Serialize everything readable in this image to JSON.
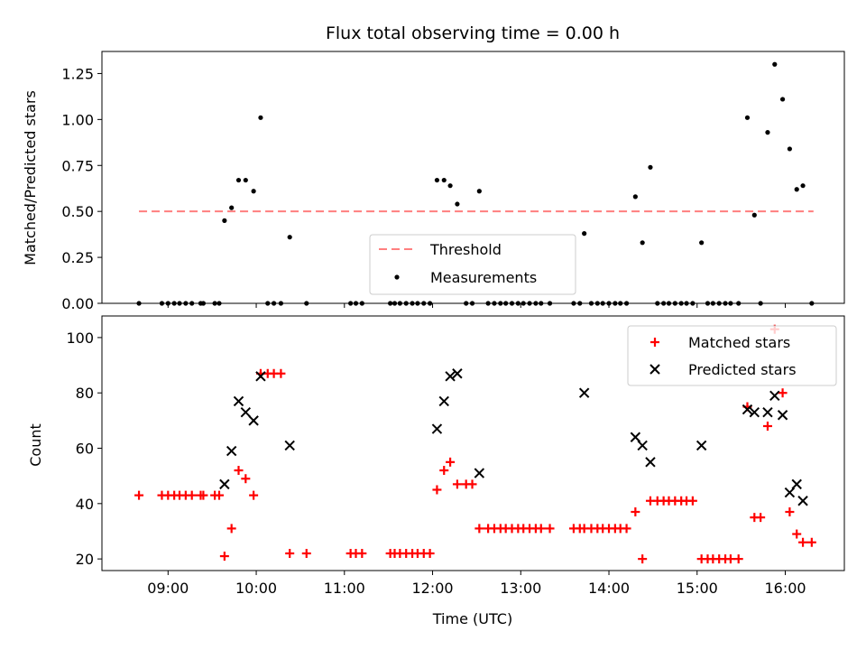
{
  "chart_data": {
    "title": "Flux total observing time = 0.00 h",
    "xlabel": "Time (UTC)",
    "x_unit": "hours UTC",
    "xlim": [
      8.25,
      16.67
    ],
    "xticks": [
      {
        "value": 9,
        "label": "09:00"
      },
      {
        "value": 10,
        "label": "10:00"
      },
      {
        "value": 11,
        "label": "11:00"
      },
      {
        "value": 12,
        "label": "12:00"
      },
      {
        "value": 13,
        "label": "13:00"
      },
      {
        "value": 14,
        "label": "14:00"
      },
      {
        "value": 15,
        "label": "15:00"
      },
      {
        "value": 16,
        "label": "16:00"
      }
    ],
    "colors": {
      "threshold": "#ff7f7f",
      "measurements": "#000000",
      "matched": "#ff0000",
      "predicted": "#000000"
    },
    "top": {
      "type": "scatter",
      "ylabel": "Matched/Predicted stars",
      "ylim": [
        0,
        1.37
      ],
      "yticks": [
        "0.00",
        "0.25",
        "0.50",
        "0.75",
        "1.00",
        "1.25"
      ],
      "legend_position": "lower-center",
      "threshold": {
        "name": "Threshold",
        "value": 0.5,
        "x_range": [
          8.67,
          16.32
        ]
      },
      "measurements": {
        "name": "Measurements",
        "points": [
          [
            8.67,
            0
          ],
          [
            8.93,
            0
          ],
          [
            9.0,
            0
          ],
          [
            9.07,
            0
          ],
          [
            9.13,
            0
          ],
          [
            9.2,
            0
          ],
          [
            9.27,
            0
          ],
          [
            9.37,
            0
          ],
          [
            9.4,
            0
          ],
          [
            9.53,
            0
          ],
          [
            9.58,
            0
          ],
          [
            9.64,
            0.45
          ],
          [
            9.72,
            0.52
          ],
          [
            9.8,
            0.67
          ],
          [
            9.88,
            0.67
          ],
          [
            9.97,
            0.61
          ],
          [
            10.05,
            1.01
          ],
          [
            10.13,
            0
          ],
          [
            10.2,
            0
          ],
          [
            10.28,
            0
          ],
          [
            10.38,
            0.36
          ],
          [
            10.57,
            0
          ],
          [
            11.07,
            0
          ],
          [
            11.13,
            0
          ],
          [
            11.2,
            0
          ],
          [
            11.52,
            0
          ],
          [
            11.57,
            0
          ],
          [
            11.63,
            0
          ],
          [
            11.7,
            0
          ],
          [
            11.77,
            0
          ],
          [
            11.83,
            0
          ],
          [
            11.9,
            0
          ],
          [
            11.97,
            0
          ],
          [
            12.05,
            0.67
          ],
          [
            12.13,
            0.67
          ],
          [
            12.2,
            0.64
          ],
          [
            12.28,
            0.54
          ],
          [
            12.38,
            0
          ],
          [
            12.45,
            0
          ],
          [
            12.53,
            0.61
          ],
          [
            12.63,
            0
          ],
          [
            12.7,
            0
          ],
          [
            12.77,
            0
          ],
          [
            12.83,
            0
          ],
          [
            12.9,
            0
          ],
          [
            12.97,
            0
          ],
          [
            13.03,
            0
          ],
          [
            13.1,
            0
          ],
          [
            13.17,
            0
          ],
          [
            13.23,
            0
          ],
          [
            13.33,
            0
          ],
          [
            13.6,
            0
          ],
          [
            13.67,
            0
          ],
          [
            13.72,
            0.38
          ],
          [
            13.8,
            0
          ],
          [
            13.87,
            0
          ],
          [
            13.93,
            0
          ],
          [
            14.0,
            0
          ],
          [
            14.07,
            0
          ],
          [
            14.13,
            0
          ],
          [
            14.2,
            0
          ],
          [
            14.3,
            0.58
          ],
          [
            14.38,
            0.33
          ],
          [
            14.47,
            0.74
          ],
          [
            14.55,
            0
          ],
          [
            14.62,
            0
          ],
          [
            14.68,
            0
          ],
          [
            14.75,
            0
          ],
          [
            14.82,
            0
          ],
          [
            14.88,
            0
          ],
          [
            14.95,
            0
          ],
          [
            15.05,
            0.33
          ],
          [
            15.12,
            0
          ],
          [
            15.18,
            0
          ],
          [
            15.25,
            0
          ],
          [
            15.32,
            0
          ],
          [
            15.38,
            0
          ],
          [
            15.47,
            0
          ],
          [
            15.57,
            1.01
          ],
          [
            15.65,
            0.48
          ],
          [
            15.72,
            0
          ],
          [
            15.8,
            0.93
          ],
          [
            15.88,
            1.3
          ],
          [
            15.97,
            1.11
          ],
          [
            16.05,
            0.84
          ],
          [
            16.13,
            0.62
          ],
          [
            16.2,
            0.64
          ],
          [
            16.3,
            0
          ]
        ]
      }
    },
    "bottom": {
      "type": "scatter",
      "ylabel": "Count",
      "ylim": [
        15.8,
        107.8
      ],
      "yticks": [
        "20",
        "40",
        "60",
        "80",
        "100"
      ],
      "legend_position": "upper-right",
      "matched": {
        "name": "Matched stars",
        "points": [
          [
            8.67,
            43
          ],
          [
            8.93,
            43
          ],
          [
            9.0,
            43
          ],
          [
            9.07,
            43
          ],
          [
            9.13,
            43
          ],
          [
            9.2,
            43
          ],
          [
            9.27,
            43
          ],
          [
            9.37,
            43
          ],
          [
            9.4,
            43
          ],
          [
            9.53,
            43
          ],
          [
            9.58,
            43
          ],
          [
            9.64,
            21
          ],
          [
            9.72,
            31
          ],
          [
            9.8,
            52
          ],
          [
            9.88,
            49
          ],
          [
            9.97,
            43
          ],
          [
            10.05,
            87
          ],
          [
            10.13,
            87
          ],
          [
            10.2,
            87
          ],
          [
            10.28,
            87
          ],
          [
            10.38,
            22
          ],
          [
            10.57,
            22
          ],
          [
            11.07,
            22
          ],
          [
            11.13,
            22
          ],
          [
            11.2,
            22
          ],
          [
            11.52,
            22
          ],
          [
            11.57,
            22
          ],
          [
            11.63,
            22
          ],
          [
            11.7,
            22
          ],
          [
            11.77,
            22
          ],
          [
            11.83,
            22
          ],
          [
            11.9,
            22
          ],
          [
            11.97,
            22
          ],
          [
            12.05,
            45
          ],
          [
            12.13,
            52
          ],
          [
            12.2,
            55
          ],
          [
            12.28,
            47
          ],
          [
            12.38,
            47
          ],
          [
            12.45,
            47
          ],
          [
            12.53,
            31
          ],
          [
            12.63,
            31
          ],
          [
            12.7,
            31
          ],
          [
            12.77,
            31
          ],
          [
            12.83,
            31
          ],
          [
            12.9,
            31
          ],
          [
            12.97,
            31
          ],
          [
            13.03,
            31
          ],
          [
            13.1,
            31
          ],
          [
            13.17,
            31
          ],
          [
            13.23,
            31
          ],
          [
            13.33,
            31
          ],
          [
            13.6,
            31
          ],
          [
            13.67,
            31
          ],
          [
            13.72,
            31
          ],
          [
            13.8,
            31
          ],
          [
            13.87,
            31
          ],
          [
            13.93,
            31
          ],
          [
            14.0,
            31
          ],
          [
            14.07,
            31
          ],
          [
            14.13,
            31
          ],
          [
            14.2,
            31
          ],
          [
            14.3,
            37
          ],
          [
            14.38,
            20
          ],
          [
            14.47,
            41
          ],
          [
            14.55,
            41
          ],
          [
            14.62,
            41
          ],
          [
            14.68,
            41
          ],
          [
            14.75,
            41
          ],
          [
            14.82,
            41
          ],
          [
            14.88,
            41
          ],
          [
            14.95,
            41
          ],
          [
            15.05,
            20
          ],
          [
            15.12,
            20
          ],
          [
            15.18,
            20
          ],
          [
            15.25,
            20
          ],
          [
            15.32,
            20
          ],
          [
            15.38,
            20
          ],
          [
            15.47,
            20
          ],
          [
            15.57,
            75
          ],
          [
            15.65,
            35
          ],
          [
            15.72,
            35
          ],
          [
            15.8,
            68
          ],
          [
            15.88,
            103
          ],
          [
            15.97,
            80
          ],
          [
            16.05,
            37
          ],
          [
            16.13,
            29
          ],
          [
            16.2,
            26
          ],
          [
            16.3,
            26
          ]
        ]
      },
      "predicted": {
        "name": "Predicted stars",
        "points": [
          [
            9.64,
            47
          ],
          [
            9.72,
            59
          ],
          [
            9.8,
            77
          ],
          [
            9.88,
            73
          ],
          [
            9.97,
            70
          ],
          [
            10.05,
            86
          ],
          [
            10.38,
            61
          ],
          [
            12.05,
            67
          ],
          [
            12.13,
            77
          ],
          [
            12.2,
            86
          ],
          [
            12.28,
            87
          ],
          [
            12.53,
            51
          ],
          [
            13.72,
            80
          ],
          [
            14.3,
            64
          ],
          [
            14.38,
            61
          ],
          [
            14.47,
            55
          ],
          [
            15.05,
            61
          ],
          [
            15.57,
            74
          ],
          [
            15.65,
            73
          ],
          [
            15.8,
            73
          ],
          [
            15.88,
            79
          ],
          [
            15.97,
            72
          ],
          [
            16.05,
            44
          ],
          [
            16.13,
            47
          ],
          [
            16.2,
            41
          ]
        ]
      }
    }
  }
}
